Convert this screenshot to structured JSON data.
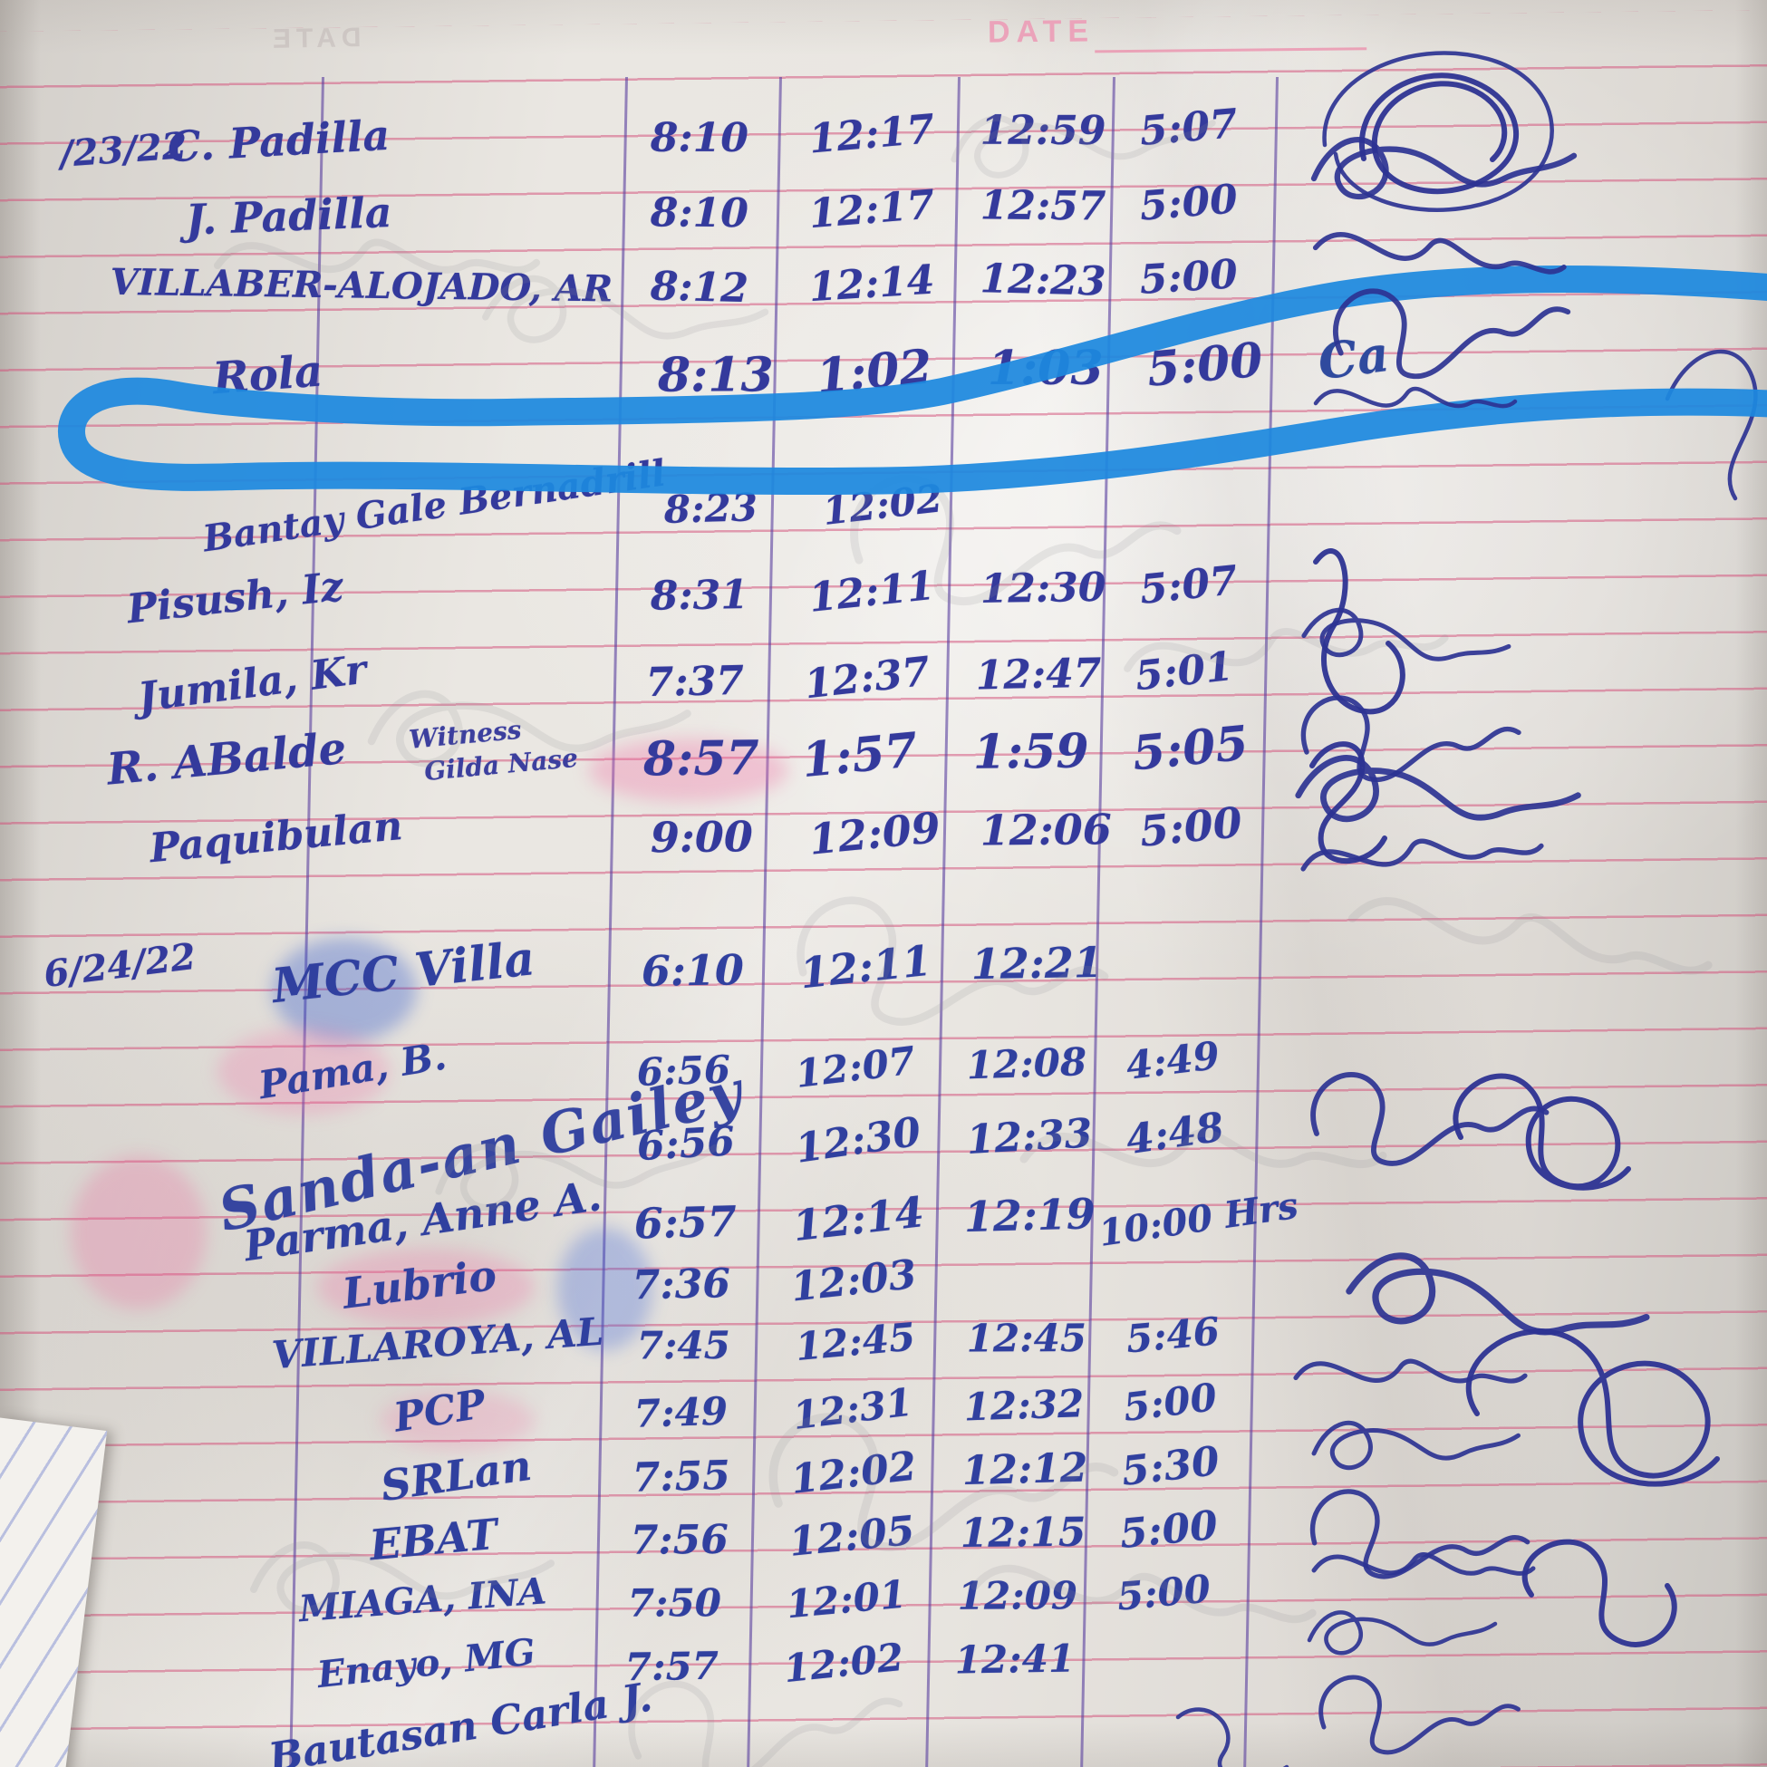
{
  "header": {
    "date_label": "DATE",
    "ghost_label": "DATE"
  },
  "annotation": {
    "type": "blue-marker-circle",
    "highlighted_row": "Rola",
    "highlight_color": "#1d89df"
  },
  "colors": {
    "ink": "#32379b",
    "rule_line": "#d6537a",
    "column_line": "#583e9e"
  },
  "sections": [
    {
      "date": "/23/22",
      "rows": [
        {
          "name": "C. Padilla",
          "times": [
            "8:10",
            "12:17",
            "12:59",
            "5:07"
          ],
          "signed": true
        },
        {
          "name": "J. Padilla",
          "times": [
            "8:10",
            "12:17",
            "12:57",
            "5:00"
          ],
          "signed": true
        },
        {
          "name": "VILLABER-ALOJADO, AR",
          "times": [
            "8:12",
            "12:14",
            "12:23",
            "5:00"
          ],
          "signed": true
        },
        {
          "name": "Rola",
          "times": [
            "8:13",
            "1:02",
            "1:03",
            "5:00"
          ],
          "signed": true,
          "signature_text": "Ca",
          "highlighted": true
        },
        {
          "name": "Bantay Gale Bernadrill",
          "times": [
            "8:23",
            "12:02",
            "",
            ""
          ],
          "signed": false
        },
        {
          "name": "Pisush, Iz",
          "times": [
            "8:31",
            "12:11",
            "12:30",
            "5:07"
          ],
          "signed": true
        },
        {
          "name": "Jumila, Kr",
          "times": [
            "7:37",
            "12:37",
            "12:47",
            "5:01"
          ],
          "signed": true
        },
        {
          "name": "R. ABalde",
          "note": "Witness",
          "note2": "Gilda Nase",
          "times": [
            "8:57",
            "1:57",
            "1:59",
            "5:05"
          ],
          "signed": true
        },
        {
          "name": "Paquibulan",
          "times": [
            "9:00",
            "12:09",
            "12:06",
            "5:00"
          ],
          "signed": true
        }
      ]
    },
    {
      "date": "6/24/22",
      "rows": [
        {
          "name": "MCC Villa",
          "times": [
            "6:10",
            "12:11",
            "12:21",
            ""
          ],
          "signed": false
        },
        {
          "name": "Pama, B.",
          "times": [
            "6:56",
            "12:07",
            "12:08",
            "4:49"
          ],
          "signed": true
        },
        {
          "name": "Sanda-an Gailey",
          "times": [
            "6:56",
            "12:30",
            "12:33",
            "4:48"
          ],
          "signed": false
        },
        {
          "name": "Parma, Anne A.",
          "times": [
            "6:57",
            "12:14",
            "12:19",
            "10:00 Hrs"
          ],
          "signed": true
        },
        {
          "name": "Lubrio",
          "times": [
            "7:36",
            "12:03",
            "",
            ""
          ],
          "signed": false
        },
        {
          "name": "VILLAROYA, AL",
          "times": [
            "7:45",
            "12:45",
            "12:45",
            "5:46"
          ],
          "signed": true
        },
        {
          "name": "PCP",
          "times": [
            "7:49",
            "12:31",
            "12:32",
            "5:00"
          ],
          "signed": true
        },
        {
          "name": "SRLan",
          "times": [
            "7:55",
            "12:02",
            "12:12",
            "5:30"
          ],
          "signed": true
        },
        {
          "name": "EBAT",
          "times": [
            "7:56",
            "12:05",
            "12:15",
            "5:00"
          ],
          "signed": true
        },
        {
          "name": "MIAGA, INA",
          "times": [
            "7:50",
            "12:01",
            "12:09",
            "5:00"
          ],
          "signed": true
        },
        {
          "name": "Enayo, MG",
          "times": [
            "7:57",
            "12:02",
            "12:41",
            ""
          ],
          "signed": true
        },
        {
          "name": "Bautasan Carla J.",
          "times": [
            "",
            "",
            "",
            ""
          ],
          "signed": false
        }
      ]
    }
  ]
}
